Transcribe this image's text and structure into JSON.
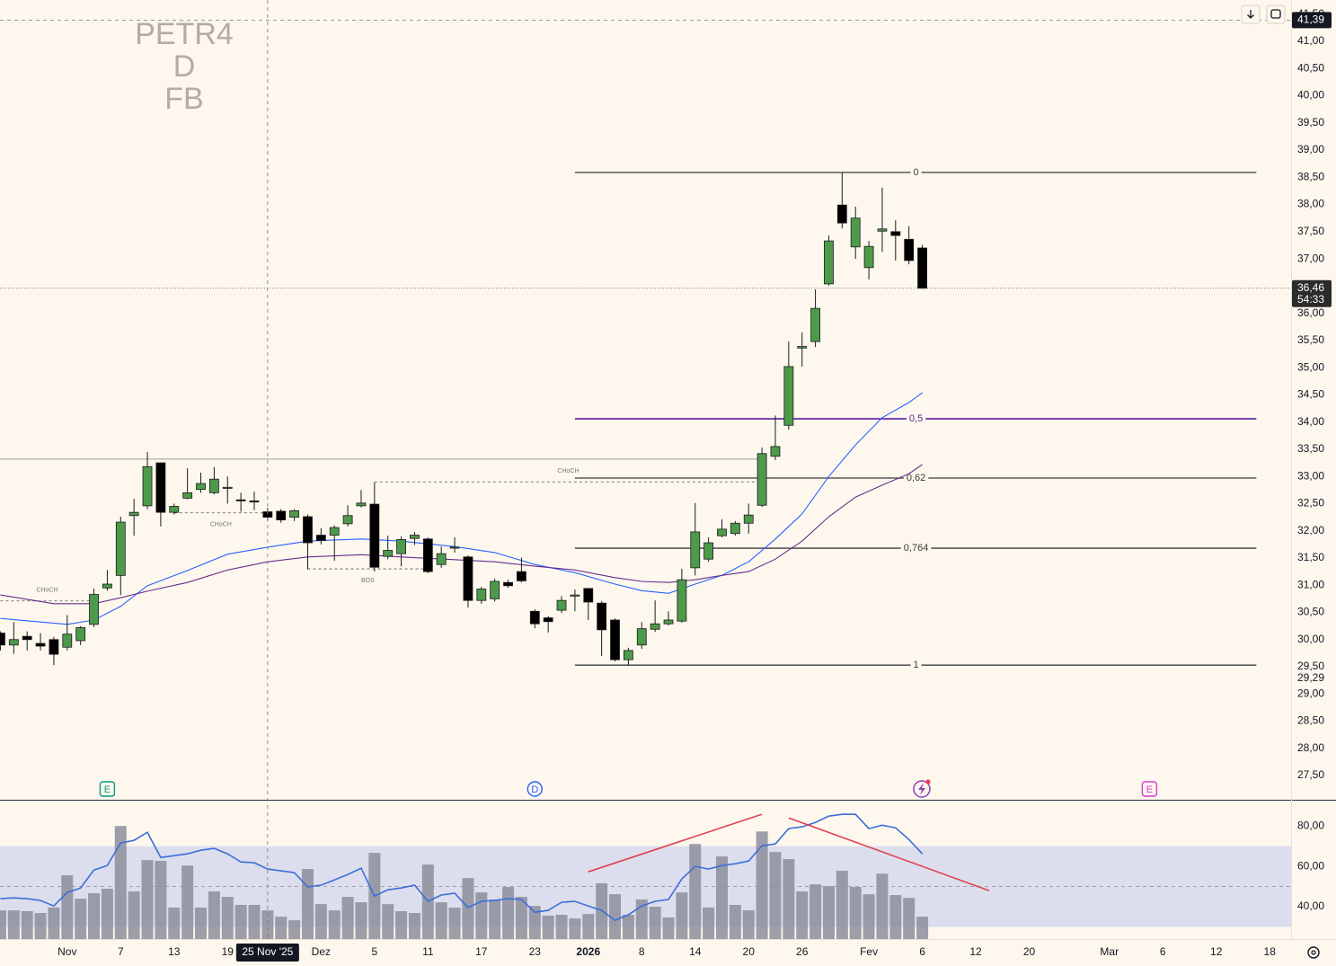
{
  "watermark": [
    "PETR4",
    "D",
    "FB"
  ],
  "chart_data": [
    {
      "type": "candlestick",
      "xlim": [
        -0.03,
        96.6
      ],
      "ylim": [
        27.055,
        41.76
      ],
      "yticks": [
        {
          "value": 41.5,
          "label": "41,50"
        },
        {
          "value": 41,
          "label": "41,00"
        },
        {
          "value": 40.5,
          "label": "40,50"
        },
        {
          "value": 40,
          "label": "40,00"
        },
        {
          "value": 39.5,
          "label": "39,50"
        },
        {
          "value": 39,
          "label": "39,00"
        },
        {
          "value": 38.5,
          "label": "38,50"
        },
        {
          "value": 38,
          "label": "38,00"
        },
        {
          "value": 37.5,
          "label": "37,50"
        },
        {
          "value": 37,
          "label": "37,00"
        },
        {
          "value": 36.5,
          "label": "36,50"
        },
        {
          "value": 36,
          "label": "36,00"
        },
        {
          "value": 35.5,
          "label": "35,50"
        },
        {
          "value": 35,
          "label": "35,00"
        },
        {
          "value": 34.5,
          "label": "34,50"
        },
        {
          "value": 34,
          "label": "34,00"
        },
        {
          "value": 33.5,
          "label": "33,50"
        },
        {
          "value": 33,
          "label": "33,00"
        },
        {
          "value": 32.5,
          "label": "32,50"
        },
        {
          "value": 32,
          "label": "32,00"
        },
        {
          "value": 31.5,
          "label": "31,50"
        },
        {
          "value": 31,
          "label": "31,00"
        },
        {
          "value": 30.5,
          "label": "30,50"
        },
        {
          "value": 30,
          "label": "30,00"
        },
        {
          "value": 29.5,
          "label": "29,50"
        },
        {
          "value": 29,
          "label": "29,00"
        },
        {
          "value": 28.5,
          "label": "28,50"
        },
        {
          "value": 28,
          "label": "28,00"
        },
        {
          "value": 27.5,
          "label": "27,50"
        }
      ],
      "xticks": [
        {
          "value": 5,
          "label": "Nov"
        },
        {
          "value": 9,
          "label": "7"
        },
        {
          "value": 13,
          "label": "13"
        },
        {
          "value": 17,
          "label": "19"
        },
        {
          "value": 24,
          "label": "Dez"
        },
        {
          "value": 28,
          "label": "5"
        },
        {
          "value": 32,
          "label": "11"
        },
        {
          "value": 36,
          "label": "17"
        },
        {
          "value": 40,
          "label": "23"
        },
        {
          "value": 44,
          "label": "2026"
        },
        {
          "value": 48,
          "label": "8"
        },
        {
          "value": 52,
          "label": "14"
        },
        {
          "value": 56,
          "label": "20"
        },
        {
          "value": 60,
          "label": "26"
        },
        {
          "value": 65,
          "label": "Fev"
        },
        {
          "value": 69,
          "label": "6"
        },
        {
          "value": 73,
          "label": "12"
        },
        {
          "value": 77,
          "label": "20"
        },
        {
          "value": 83,
          "label": "Mar"
        },
        {
          "value": 87,
          "label": "6"
        },
        {
          "value": 91,
          "label": "12"
        },
        {
          "value": 95,
          "label": "18"
        }
      ],
      "x": [
        0,
        1,
        2,
        3,
        4,
        5,
        6,
        7,
        8,
        9,
        10,
        11,
        12,
        13,
        14,
        15,
        16,
        17,
        18,
        19,
        20,
        21,
        22,
        23,
        24,
        25,
        26,
        27,
        28,
        29,
        30,
        31,
        32,
        33,
        34,
        35,
        36,
        37,
        38,
        39,
        40,
        41,
        42,
        43,
        44,
        45,
        46,
        47,
        48,
        49,
        50,
        51,
        52,
        53,
        54,
        55,
        56,
        57,
        58,
        59,
        60,
        61,
        62,
        63,
        64,
        65,
        66,
        67,
        68,
        69
      ],
      "open": [
        30.12,
        29.9,
        30.06,
        29.93,
        30.0,
        29.86,
        29.98,
        30.28,
        30.95,
        31.18,
        32.28,
        32.46,
        33.25,
        32.34,
        32.6,
        32.76,
        32.7,
        32.78,
        32.57,
        32.55,
        32.35,
        32.36,
        32.25,
        32.26,
        31.92,
        31.92,
        32.13,
        32.46,
        32.49,
        31.53,
        31.58,
        31.86,
        31.85,
        31.38,
        31.68,
        31.52,
        30.72,
        30.75,
        31.05,
        31.25,
        30.52,
        30.4,
        30.54,
        30.8,
        30.94,
        30.67,
        30.36,
        29.63,
        29.9,
        30.19,
        30.29,
        30.34,
        31.32,
        31.48,
        31.91,
        31.95,
        32.14,
        32.47,
        33.37,
        33.94,
        35.36,
        35.48,
        36.54,
        37.99,
        37.22,
        36.84,
        37.51,
        37.5,
        37.36,
        37.2
      ],
      "high": [
        30.15,
        30.32,
        30.15,
        30.12,
        30.05,
        30.45,
        30.25,
        30.94,
        31.28,
        32.26,
        32.59,
        33.45,
        33.25,
        32.5,
        33.15,
        33.07,
        33.17,
        33.0,
        32.7,
        32.72,
        32.42,
        32.4,
        32.4,
        32.3,
        32.05,
        32.1,
        32.47,
        32.75,
        32.89,
        31.91,
        31.9,
        31.98,
        31.88,
        31.71,
        31.88,
        31.55,
        30.97,
        31.12,
        31.1,
        31.51,
        30.56,
        30.43,
        30.8,
        30.92,
        30.95,
        30.71,
        30.39,
        29.85,
        30.32,
        30.72,
        30.52,
        31.3,
        32.51,
        31.88,
        32.21,
        32.18,
        32.5,
        33.53,
        34.12,
        35.48,
        35.65,
        36.44,
        37.43,
        38.59,
        37.96,
        37.33,
        38.31,
        37.71,
        37.6,
        37.26
      ],
      "low": [
        29.8,
        29.74,
        29.8,
        29.8,
        29.53,
        29.8,
        29.9,
        30.23,
        30.9,
        30.82,
        31.91,
        32.4,
        32.08,
        32.3,
        32.58,
        32.7,
        32.67,
        32.5,
        32.35,
        32.38,
        32.18,
        32.15,
        32.18,
        31.29,
        31.75,
        31.45,
        32.08,
        32.43,
        31.25,
        31.48,
        31.35,
        31.74,
        31.22,
        31.32,
        31.6,
        30.59,
        30.66,
        30.7,
        30.95,
        31.05,
        30.21,
        30.13,
        30.49,
        30.52,
        30.36,
        29.7,
        29.6,
        29.53,
        29.83,
        30.14,
        30.26,
        30.31,
        31.18,
        31.43,
        31.88,
        31.91,
        31.95,
        32.44,
        33.3,
        33.86,
        35.02,
        35.38,
        36.51,
        37.56,
        37.0,
        36.62,
        37.13,
        36.97,
        36.9,
        36.46
      ],
      "close": [
        29.9,
        30.0,
        30.0,
        29.88,
        29.73,
        30.1,
        30.22,
        30.83,
        31.02,
        32.16,
        32.34,
        33.18,
        32.34,
        32.45,
        32.7,
        32.87,
        32.95,
        32.8,
        32.55,
        32.53,
        32.25,
        32.2,
        32.37,
        31.78,
        31.82,
        32.06,
        32.28,
        32.51,
        31.33,
        31.64,
        31.84,
        31.92,
        31.25,
        31.58,
        31.7,
        30.72,
        30.93,
        31.07,
        30.99,
        31.08,
        30.29,
        30.33,
        30.72,
        30.82,
        30.69,
        30.18,
        29.63,
        29.8,
        30.2,
        30.29,
        30.36,
        31.1,
        31.98,
        31.78,
        32.03,
        32.14,
        32.29,
        33.42,
        33.55,
        35.02,
        35.39,
        36.09,
        37.33,
        37.66,
        37.75,
        37.23,
        37.55,
        37.43,
        36.97,
        36.46
      ],
      "up_color": "#4d9a4a",
      "down_color": "#000000",
      "moving_averages": [
        {
          "color": "#2962ff",
          "x": [
            0,
            5,
            7,
            9,
            11,
            14,
            17,
            20,
            23,
            27,
            30,
            34,
            37,
            40,
            43,
            46,
            48,
            50,
            52,
            54,
            56,
            58,
            60,
            62,
            64,
            66,
            68,
            69
          ],
          "values": [
            30.39,
            30.28,
            30.36,
            30.61,
            30.99,
            31.27,
            31.57,
            31.7,
            31.81,
            31.85,
            31.81,
            31.71,
            31.6,
            31.38,
            31.23,
            31.02,
            30.9,
            30.85,
            31.02,
            31.18,
            31.43,
            31.85,
            32.31,
            33.0,
            33.58,
            34.08,
            34.36,
            34.54
          ]
        },
        {
          "color": "#6a2c8c",
          "x": [
            0,
            4,
            7,
            9,
            11,
            14,
            17,
            20,
            23,
            27,
            30,
            34,
            37,
            40,
            43,
            46,
            48,
            50,
            52,
            54,
            56,
            58,
            60,
            62,
            64,
            66,
            68,
            69
          ],
          "values": [
            30.82,
            30.66,
            30.66,
            30.77,
            30.89,
            31.05,
            31.28,
            31.43,
            31.52,
            31.56,
            31.52,
            31.47,
            31.43,
            31.35,
            31.28,
            31.14,
            31.07,
            31.05,
            31.1,
            31.18,
            31.25,
            31.48,
            31.81,
            32.26,
            32.62,
            32.84,
            33.05,
            33.22
          ]
        }
      ],
      "fib": {
        "x": [
          43,
          94
        ],
        "color": "#3c3c3c",
        "levels": [
          {
            "label": "0",
            "price": 38.59
          },
          {
            "label": "0,5",
            "price": 34.06,
            "color": "#5b1f9e"
          },
          {
            "label": "0,62",
            "price": 32.97
          },
          {
            "label": "0,764",
            "price": 31.68
          },
          {
            "label": "1",
            "price": 29.53
          }
        ]
      },
      "structure": [
        {
          "label": "CHoCH",
          "price": 30.71,
          "x": [
            0,
            7
          ],
          "side": "above"
        },
        {
          "label": "CHoCH",
          "price": 32.33,
          "x": [
            13,
            20
          ],
          "side": "below"
        },
        {
          "label": "BOS",
          "price": 31.3,
          "x": [
            23,
            32
          ],
          "side": "below"
        },
        {
          "label": "CHoCH",
          "price": 32.9,
          "x": [
            28,
            57
          ],
          "side": "above"
        }
      ],
      "level_line": {
        "price": 33.32,
        "x": [
          0,
          57
        ],
        "color": "#9aa0a8"
      },
      "crosshair": {
        "x": {
          "value": 20,
          "label": "25 Nov '25"
        },
        "y": {
          "value": 41.39,
          "label": "41,39"
        }
      },
      "last_price": {
        "value": 36.46,
        "label": "36,46"
      },
      "countdown": "54:33",
      "alert": {
        "value": 29.29,
        "label": "29,29"
      },
      "events": [
        {
          "label": "E",
          "x": 8,
          "color": "#089981"
        },
        {
          "label": "D",
          "x": 40,
          "color": "#2962ff"
        },
        {
          "label": "E",
          "x": 86,
          "color": "#d63bd6"
        }
      ]
    },
    {
      "type": "oscillator",
      "ylim": [
        24,
        93
      ],
      "yticks": [
        {
          "value": 80,
          "label": "80,00"
        },
        {
          "value": 60,
          "label": "60,00"
        },
        {
          "value": 40,
          "label": "40,00"
        }
      ],
      "band": {
        "values": [
          30,
          70
        ],
        "color": "#dcdeee"
      },
      "midline": 50,
      "x": [
        0,
        1,
        2,
        3,
        4,
        5,
        6,
        7,
        8,
        9,
        10,
        11,
        12,
        13,
        14,
        15,
        16,
        17,
        18,
        19,
        20,
        21,
        22,
        23,
        24,
        25,
        26,
        27,
        28,
        29,
        30,
        31,
        32,
        33,
        34,
        35,
        36,
        37,
        38,
        39,
        40,
        41,
        42,
        43,
        44,
        45,
        46,
        47,
        48,
        49,
        50,
        51,
        52,
        53,
        54,
        55,
        56,
        57,
        58,
        59,
        60,
        61,
        62,
        63,
        64,
        65,
        66,
        67,
        68,
        69
      ],
      "series": [
        {
          "type": "bar",
          "color": "#8c8e9a",
          "values": [
            38.2,
            38.2,
            37.8,
            36.9,
            39.6,
            55.6,
            44.0,
            46.7,
            48.9,
            80.0,
            47.6,
            63.1,
            62.7,
            39.6,
            60.4,
            39.6,
            47.6,
            44.9,
            40.9,
            40.9,
            38.2,
            35.1,
            33.3,
            58.7,
            41.3,
            38.2,
            44.9,
            42.2,
            66.7,
            41.3,
            37.8,
            36.9,
            60.9,
            42.2,
            39.6,
            54.2,
            47.1,
            43.6,
            49.8,
            44.9,
            40.4,
            35.6,
            36.0,
            34.2,
            36.4,
            51.6,
            46.2,
            36.0,
            43.6,
            40.0,
            34.7,
            47.1,
            71.1,
            39.6,
            64.9,
            40.9,
            38.2,
            77.3,
            67.1,
            63.6,
            47.6,
            51.1,
            50.2,
            57.8,
            49.8,
            46.2,
            56.4,
            45.8,
            44.4,
            35.1
          ]
        },
        {
          "type": "line",
          "color": "#3a6fd8",
          "values": [
            44.0,
            44.4,
            44.0,
            43.1,
            40.4,
            47.1,
            49.3,
            58.2,
            60.4,
            71.6,
            72.9,
            76.9,
            64.4,
            65.3,
            66.2,
            68.0,
            68.9,
            66.2,
            62.2,
            61.8,
            58.7,
            57.8,
            56.9,
            49.8,
            50.7,
            53.3,
            56.0,
            59.1,
            45.3,
            48.4,
            49.3,
            50.7,
            42.7,
            45.8,
            46.7,
            39.6,
            42.7,
            43.1,
            44.0,
            43.6,
            37.3,
            38.2,
            42.2,
            42.7,
            40.4,
            38.2,
            33.3,
            36.0,
            40.4,
            42.7,
            43.6,
            53.8,
            60.0,
            58.7,
            60.4,
            61.3,
            62.7,
            70.2,
            71.1,
            78.7,
            79.6,
            81.8,
            84.9,
            85.8,
            85.8,
            78.7,
            80.4,
            79.1,
            73.3,
            66.2
          ]
        }
      ],
      "trendlines": {
        "color": "#e0424d",
        "lines": [
          {
            "x": [
              44,
              57
            ],
            "values": [
              57.3,
              85.8
            ]
          },
          {
            "x": [
              59,
              74
            ],
            "values": [
              84.0,
              48.0
            ]
          }
        ]
      }
    }
  ]
}
